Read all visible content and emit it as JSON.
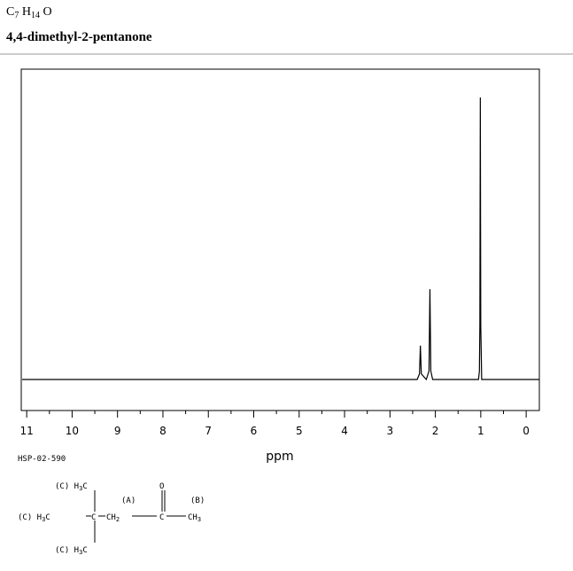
{
  "header": {
    "formula_parts": [
      "C",
      "7",
      " H",
      "14",
      " O"
    ],
    "name": "4,4-dimethyl-2-pentanone"
  },
  "chart_data": {
    "type": "line",
    "xlabel": "ppm",
    "code": "HSP-02-590",
    "x": [
      11.1,
      2.4,
      2.35,
      2.33,
      2.31,
      2.2,
      2.14,
      2.12,
      2.1,
      2.06,
      1.05,
      1.03,
      1.02,
      1.01,
      1.0,
      0.98,
      -0.3
    ],
    "values": [
      0,
      0,
      2,
      12,
      2,
      0,
      3,
      32,
      3,
      0,
      0,
      3,
      19,
      100,
      19,
      0,
      0
    ],
    "color": "#000000",
    "xlim": [
      11.12,
      -0.29
    ],
    "ylim": [
      -11,
      110
    ],
    "xticks": [
      11,
      10,
      9,
      8,
      7,
      6,
      5,
      4,
      3,
      2,
      1,
      0
    ],
    "xminorticks": [
      10.5,
      9.5,
      8.5,
      7.5,
      6.5,
      5.5,
      4.5,
      3.5,
      2.5,
      1.5,
      0.5
    ]
  },
  "structure": {
    "labels": [
      [
        "(C) H",
        "3",
        "C"
      ],
      [
        "(A)"
      ],
      [
        "O"
      ],
      [
        "(B)"
      ],
      [
        "(C) H",
        "3",
        "C"
      ],
      [
        "C"
      ],
      [
        "CH",
        "2"
      ],
      [
        "C"
      ],
      [
        "CH",
        "3"
      ],
      [
        "(C) H",
        "3",
        "C"
      ]
    ]
  }
}
